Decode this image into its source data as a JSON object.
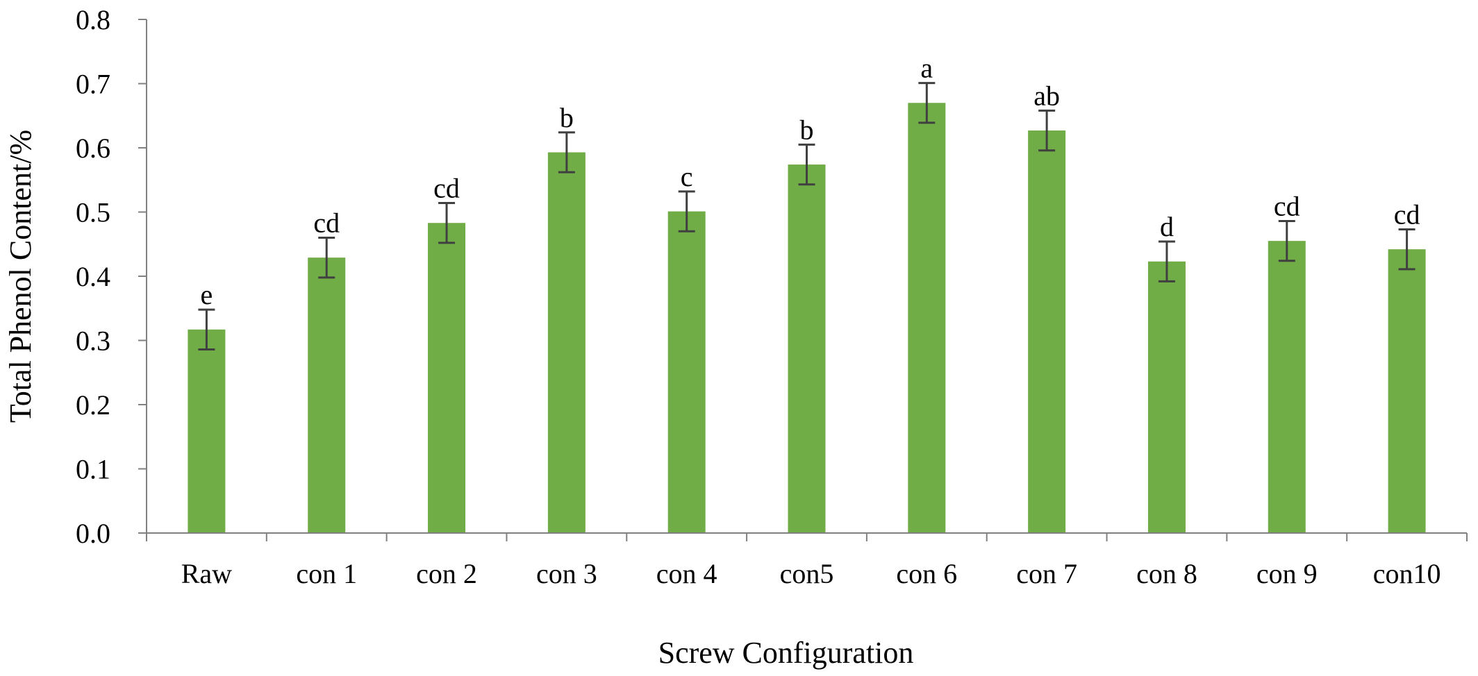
{
  "chart_data": {
    "type": "bar",
    "title": "",
    "xlabel": "Screw Configuration",
    "ylabel": "Total Phenol Content/%",
    "ylim": [
      0,
      0.8
    ],
    "yticks": [
      "0.0",
      "0.1",
      "0.2",
      "0.3",
      "0.4",
      "0.5",
      "0.6",
      "0.7",
      "0.8"
    ],
    "categories": [
      "Raw",
      "con 1",
      "con 2",
      "con 3",
      "con 4",
      "con5",
      "con 6",
      "con 7",
      "con 8",
      "con 9",
      "con10"
    ],
    "values": [
      0.317,
      0.429,
      0.483,
      0.593,
      0.501,
      0.574,
      0.67,
      0.627,
      0.423,
      0.455,
      0.442
    ],
    "errors": [
      0.031,
      0.031,
      0.031,
      0.031,
      0.031,
      0.031,
      0.031,
      0.031,
      0.031,
      0.031,
      0.031
    ],
    "significance": [
      "e",
      "cd",
      "cd",
      "b",
      "c",
      "b",
      "a",
      "ab",
      "d",
      "cd",
      "cd"
    ],
    "grid": false,
    "legend": "none",
    "bar_color": "#70AD47",
    "error_bar_color": "#404040",
    "axis_color": "#808080"
  }
}
